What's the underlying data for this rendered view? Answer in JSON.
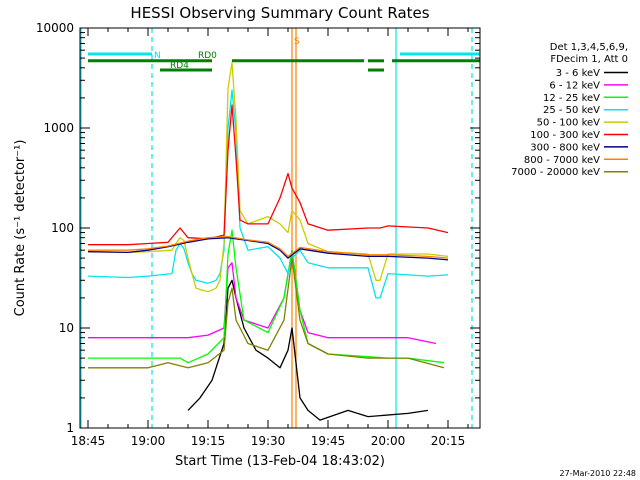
{
  "chart_data": {
    "type": "line",
    "title": "HESSI Observing Summary Count Rates",
    "xlabel": "Start Time (13-Feb-04 18:43:02)",
    "ylabel": "Count Rate (s⁻¹ detector⁻¹)",
    "y_scale": "log",
    "ylim": [
      1,
      10000
    ],
    "xlim": [
      "18:43",
      "20:23"
    ],
    "x_ticks": [
      "18:45",
      "19:00",
      "19:15",
      "19:30",
      "19:45",
      "20:00",
      "20:15"
    ],
    "y_ticks": [
      "1",
      "10",
      "100",
      "1000",
      "10000"
    ],
    "legend_title": [
      "Det 1,3,4,5,6,9,",
      "FDecim 1, Att 0"
    ],
    "legend_position": "right",
    "footer": "27-Mar-2010 22:48",
    "annotations": [
      {
        "text": "N",
        "color": "#00e5ee",
        "x": "19:01"
      },
      {
        "text": "RD0",
        "color": "#008000",
        "x": "19:12"
      },
      {
        "text": "RD4",
        "color": "#008000",
        "x": "19:05"
      },
      {
        "text": "S",
        "color": "#ff8000",
        "x": "19:36"
      }
    ],
    "series": [
      {
        "name": "3 - 6 keV",
        "color": "#000000",
        "x": [
          "19:10",
          "19:13",
          "19:16",
          "19:19",
          "19:20",
          "19:21",
          "19:22",
          "19:24",
          "19:27",
          "19:30",
          "19:33",
          "19:35",
          "19:36",
          "19:38",
          "19:40",
          "19:43",
          "19:50",
          "19:55",
          "20:05",
          "20:10"
        ],
        "values": [
          1.5,
          2,
          3,
          7,
          25,
          30,
          20,
          10,
          6,
          5,
          4,
          6,
          10,
          2,
          1.5,
          1.2,
          1.5,
          1.3,
          1.4,
          1.5
        ]
      },
      {
        "name": "6 - 12 keV",
        "color": "#ff00ff",
        "x": [
          "18:45",
          "19:00",
          "19:08",
          "19:10",
          "19:15",
          "19:19",
          "19:20",
          "19:21",
          "19:22",
          "19:24",
          "19:30",
          "19:34",
          "19:36",
          "19:38",
          "19:40",
          "19:45",
          "20:00",
          "20:05",
          "20:12"
        ],
        "values": [
          8,
          8,
          8,
          8,
          8.5,
          10,
          40,
          45,
          20,
          12,
          10,
          20,
          60,
          15,
          9,
          8,
          8,
          8,
          7
        ]
      },
      {
        "name": "12 - 25 keV",
        "color": "#00ff00",
        "x": [
          "18:45",
          "19:00",
          "19:08",
          "19:10",
          "19:15",
          "19:19",
          "19:20",
          "19:21",
          "19:22",
          "19:24",
          "19:30",
          "19:34",
          "19:36",
          "19:38",
          "19:40",
          "19:45",
          "20:00",
          "20:05",
          "20:14"
        ],
        "values": [
          5,
          5,
          5,
          4.5,
          5.5,
          8,
          55,
          95,
          40,
          12,
          9,
          20,
          60,
          15,
          7,
          5.5,
          5,
          5,
          4.5
        ]
      },
      {
        "name": "25 - 50 keV",
        "color": "#00e5ee",
        "x": [
          "18:45",
          "18:55",
          "19:00",
          "19:06",
          "19:07",
          "19:08",
          "19:09",
          "19:10",
          "19:11",
          "19:12",
          "19:15",
          "19:17",
          "19:18",
          "19:19",
          "19:20",
          "19:21",
          "19:22",
          "19:23",
          "19:25",
          "19:30",
          "19:33",
          "19:35",
          "19:36",
          "19:38",
          "19:40",
          "19:45",
          "19:55",
          "19:57",
          "19:58",
          "20:00",
          "20:10",
          "20:15"
        ],
        "values": [
          33,
          32,
          33,
          35,
          60,
          70,
          62,
          45,
          35,
          30,
          28,
          30,
          35,
          60,
          1000,
          2400,
          900,
          100,
          60,
          65,
          50,
          35,
          50,
          60,
          45,
          40,
          40,
          20,
          20,
          35,
          33,
          34
        ]
      },
      {
        "name": "50 - 100 keV",
        "color": "#cccc00",
        "x": [
          "18:45",
          "18:55",
          "19:00",
          "19:06",
          "19:07",
          "19:08",
          "19:09",
          "19:10",
          "19:11",
          "19:12",
          "19:15",
          "19:17",
          "19:18",
          "19:19",
          "19:20",
          "19:21",
          "19:22",
          "19:23",
          "19:25",
          "19:30",
          "19:33",
          "19:35",
          "19:36",
          "19:38",
          "19:40",
          "19:45",
          "19:55",
          "19:57",
          "19:58",
          "20:00",
          "20:10",
          "20:15"
        ],
        "values": [
          58,
          57,
          58,
          60,
          70,
          80,
          75,
          50,
          35,
          25,
          23,
          25,
          30,
          70,
          2500,
          4500,
          1200,
          150,
          110,
          130,
          110,
          90,
          150,
          120,
          70,
          58,
          55,
          30,
          30,
          55,
          55,
          52
        ]
      },
      {
        "name": "100 - 300 keV",
        "color": "#ff0000",
        "x": [
          "18:45",
          "18:55",
          "19:00",
          "19:05",
          "19:08",
          "19:10",
          "19:15",
          "19:19",
          "19:20",
          "19:21",
          "19:22",
          "19:23",
          "19:25",
          "19:30",
          "19:33",
          "19:35",
          "19:36",
          "19:38",
          "19:40",
          "19:45",
          "19:55",
          "19:57",
          "19:58",
          "20:00",
          "20:10",
          "20:15"
        ],
        "values": [
          68,
          68,
          70,
          72,
          100,
          80,
          78,
          85,
          600,
          1700,
          500,
          120,
          110,
          110,
          200,
          350,
          250,
          180,
          110,
          95,
          100,
          100,
          100,
          105,
          100,
          90
        ]
      },
      {
        "name": "300 - 800 keV",
        "color": "#00008b",
        "x": [
          "18:45",
          "18:55",
          "19:00",
          "19:05",
          "19:10",
          "19:15",
          "19:20",
          "19:25",
          "19:30",
          "19:33",
          "19:35",
          "19:38",
          "19:45",
          "19:55",
          "20:00",
          "20:10",
          "20:15"
        ],
        "values": [
          58,
          57,
          60,
          65,
          72,
          78,
          80,
          75,
          70,
          60,
          50,
          62,
          56,
          52,
          52,
          50,
          48
        ]
      },
      {
        "name": "800 - 7000 keV",
        "color": "#ff8000",
        "x": [
          "18:45",
          "18:55",
          "19:00",
          "19:05",
          "19:10",
          "19:15",
          "19:20",
          "19:25",
          "19:30",
          "19:33",
          "19:35",
          "19:38",
          "19:45",
          "19:55",
          "20:00",
          "20:10",
          "20:15"
        ],
        "values": [
          60,
          60,
          62,
          66,
          74,
          80,
          82,
          76,
          72,
          62,
          52,
          64,
          58,
          54,
          54,
          52,
          50
        ]
      },
      {
        "name": "7000 - 20000 keV",
        "color": "#808000",
        "x": [
          "18:45",
          "18:55",
          "19:00",
          "19:05",
          "19:10",
          "19:15",
          "19:19",
          "19:20",
          "19:21",
          "19:22",
          "19:25",
          "19:30",
          "19:34",
          "19:36",
          "19:38",
          "19:40",
          "19:45",
          "19:55",
          "20:05",
          "20:14"
        ],
        "values": [
          4,
          4,
          4,
          4.5,
          4,
          4.5,
          6,
          18,
          25,
          12,
          7,
          6,
          12,
          50,
          12,
          7,
          5.5,
          5,
          5,
          4
        ]
      }
    ]
  },
  "overlay_lines": [
    {
      "label": "N",
      "color": "#00e5ee",
      "level": 5500,
      "segments": [
        [
          "18:45",
          "19:01"
        ],
        [
          "20:03",
          "20:23"
        ]
      ]
    },
    {
      "label": "RD0",
      "color": "#008000",
      "level": 4700,
      "segments": [
        [
          "18:45",
          "19:16"
        ],
        [
          "19:21",
          "19:54"
        ],
        [
          "19:55",
          "19:59"
        ],
        [
          "20:01",
          "20:23"
        ]
      ]
    },
    {
      "label": "RD4",
      "color": "#008000",
      "level": 3800,
      "segments": [
        [
          "19:03",
          "19:16"
        ],
        [
          "19:55",
          "19:59"
        ]
      ]
    }
  ],
  "vertical_markers": [
    {
      "x": "18:43",
      "color": "#00e5ee",
      "style": "solid"
    },
    {
      "x": "19:01",
      "color": "#00e5ee",
      "style": "dashed"
    },
    {
      "x": "20:02",
      "color": "#00e5ee",
      "style": "solid"
    },
    {
      "x": "20:21",
      "color": "#00e5ee",
      "style": "dashed"
    },
    {
      "x": "19:36",
      "color": "#ff8000",
      "style": "solid"
    },
    {
      "x": "19:37",
      "color": "#ff8000",
      "style": "solid"
    }
  ]
}
